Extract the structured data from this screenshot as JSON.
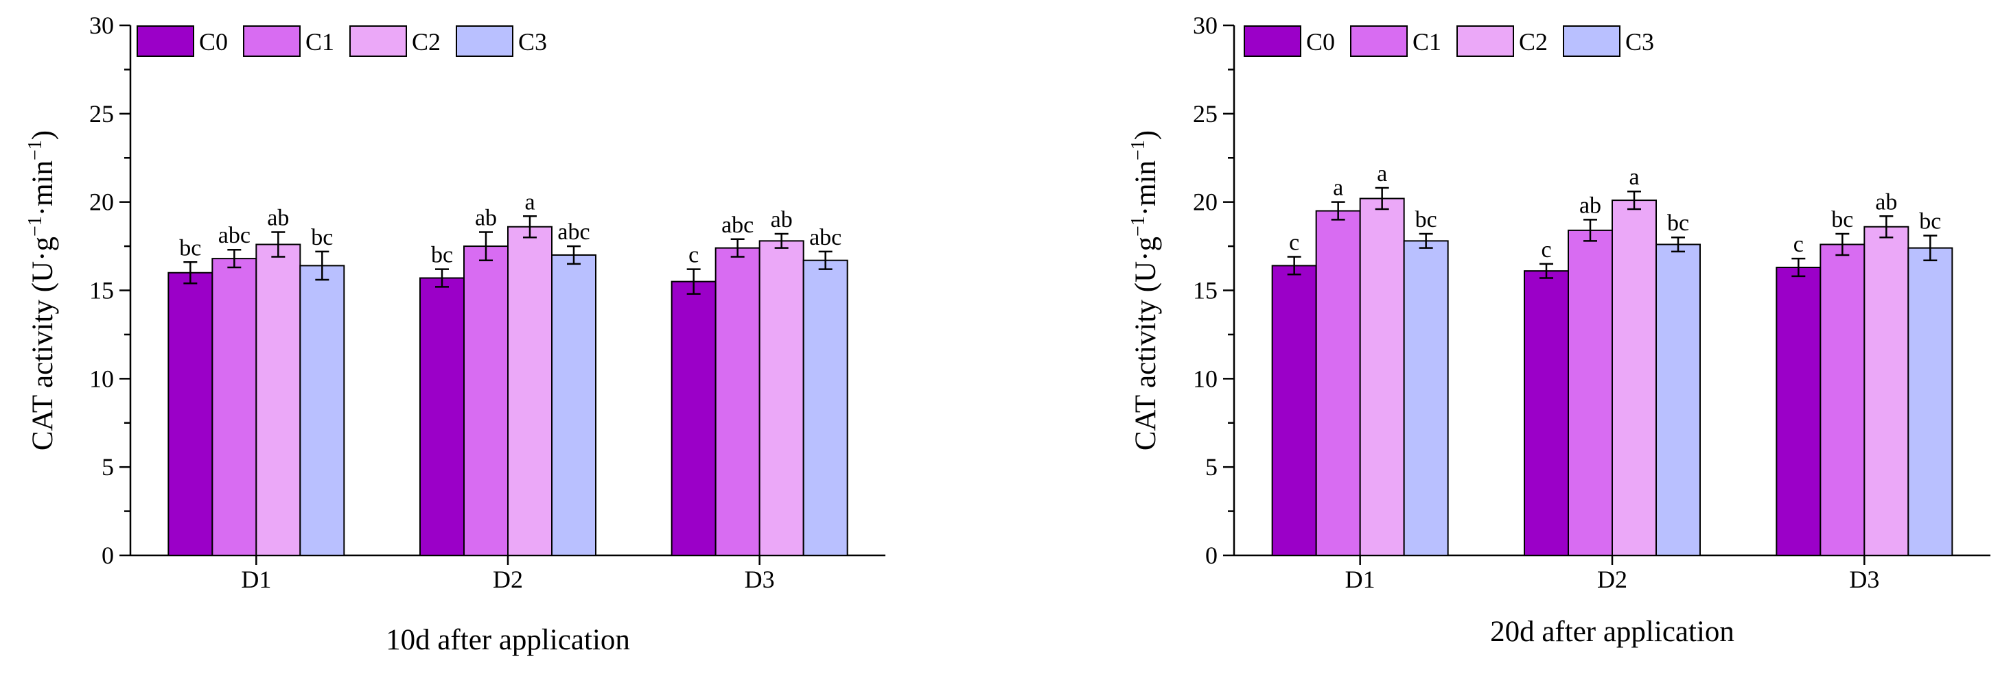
{
  "figure": {
    "panels": [
      "panel-10d",
      "panel-20d"
    ]
  },
  "chart_data": [
    {
      "id": "panel-10d",
      "type": "bar",
      "title": "",
      "xlabel": "10d after application",
      "ylabel": "CAT activity (U·g",
      "ylabel_sup1": "−1",
      "ylabel_mid": "·min",
      "ylabel_sup2": "−1",
      "ylabel_end": ")",
      "categories": [
        "D1",
        "D2",
        "D3"
      ],
      "ylim": [
        0,
        30
      ],
      "yticks": [
        "0",
        "5",
        "10",
        "15",
        "20",
        "25",
        "30"
      ],
      "grid": false,
      "legend_position": "top-left",
      "series": [
        {
          "name": "C0",
          "color": "#9B00C8",
          "values": [
            16.0,
            15.7,
            15.5
          ],
          "errors": [
            0.6,
            0.5,
            0.7
          ],
          "letters": [
            "bc",
            "bc",
            "c"
          ]
        },
        {
          "name": "C1",
          "color": "#D86CF2",
          "values": [
            16.8,
            17.5,
            17.4
          ],
          "errors": [
            0.5,
            0.8,
            0.5
          ],
          "letters": [
            "abc",
            "ab",
            "abc"
          ]
        },
        {
          "name": "C2",
          "color": "#EBA8F8",
          "values": [
            17.6,
            18.6,
            17.8
          ],
          "errors": [
            0.7,
            0.6,
            0.4
          ],
          "letters": [
            "ab",
            "a",
            "ab"
          ]
        },
        {
          "name": "C3",
          "color": "#B9C0FF",
          "values": [
            16.4,
            17.0,
            16.7
          ],
          "errors": [
            0.8,
            0.5,
            0.5
          ],
          "letters": [
            "bc",
            "abc",
            "abc"
          ]
        }
      ]
    },
    {
      "id": "panel-20d",
      "type": "bar",
      "title": "",
      "xlabel": "20d after application",
      "ylabel": "CAT activity (U·g",
      "ylabel_sup1": "−1",
      "ylabel_mid": "·min",
      "ylabel_sup2": "−1",
      "ylabel_end": ")",
      "categories": [
        "D1",
        "D2",
        "D3"
      ],
      "ylim": [
        0,
        30
      ],
      "yticks": [
        "0",
        "5",
        "10",
        "15",
        "20",
        "25",
        "30"
      ],
      "grid": false,
      "legend_position": "top-left",
      "series": [
        {
          "name": "C0",
          "color": "#9B00C8",
          "values": [
            16.4,
            16.1,
            16.3
          ],
          "errors": [
            0.5,
            0.4,
            0.5
          ],
          "letters": [
            "c",
            "c",
            "c"
          ]
        },
        {
          "name": "C1",
          "color": "#D86CF2",
          "values": [
            19.5,
            18.4,
            17.6
          ],
          "errors": [
            0.5,
            0.6,
            0.6
          ],
          "letters": [
            "a",
            "ab",
            "bc"
          ]
        },
        {
          "name": "C2",
          "color": "#EBA8F8",
          "values": [
            20.2,
            20.1,
            18.6
          ],
          "errors": [
            0.6,
            0.5,
            0.6
          ],
          "letters": [
            "a",
            "a",
            "ab"
          ]
        },
        {
          "name": "C3",
          "color": "#B9C0FF",
          "values": [
            17.8,
            17.6,
            17.4
          ],
          "errors": [
            0.4,
            0.4,
            0.7
          ],
          "letters": [
            "bc",
            "bc",
            "bc"
          ]
        }
      ]
    }
  ]
}
